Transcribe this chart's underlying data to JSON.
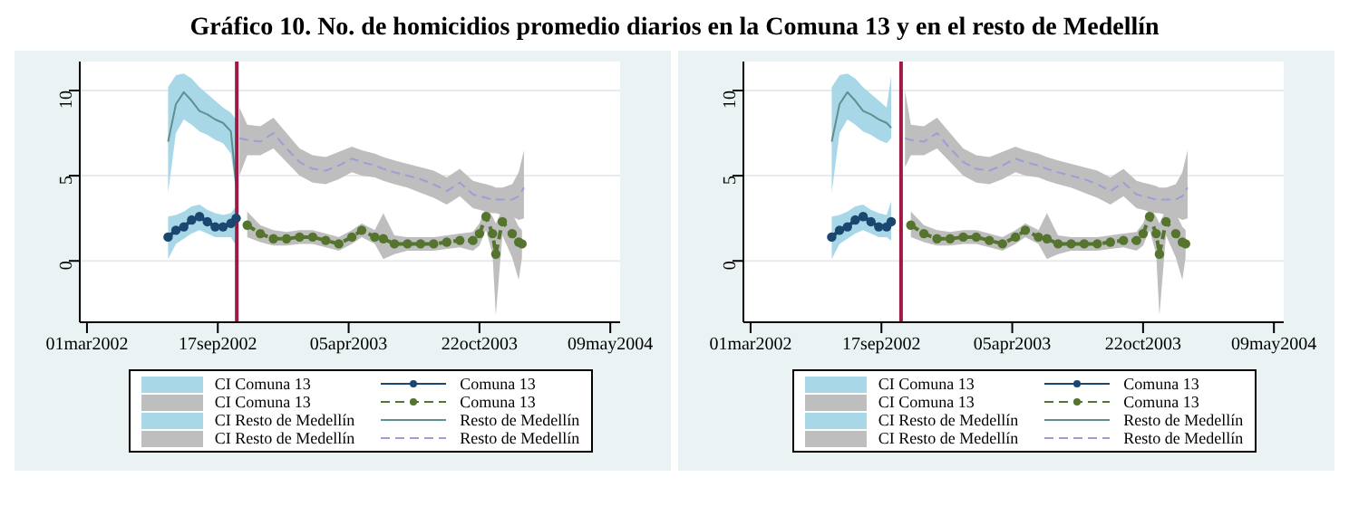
{
  "chart_data": [
    {
      "type": "line",
      "title": "Gráfico 10. No. de homicidios promedio diarios en la Comuna 13 y en el resto de Medellín",
      "xlim": [
        "2002-02-18",
        "2004-05-24"
      ],
      "xticks": [
        {
          "value": "2002-03-01",
          "label": "01mar2002"
        },
        {
          "value": "2002-09-17",
          "label": "17sep2002"
        },
        {
          "value": "2003-04-05",
          "label": "05apr2003"
        },
        {
          "value": "2003-10-22",
          "label": "22oct2003"
        },
        {
          "value": "2004-05-09",
          "label": "09may2004"
        }
      ],
      "ylim": [
        -3.6,
        11.7
      ],
      "yticks": [
        0,
        5,
        10
      ],
      "grid": "y",
      "legend": "bottom",
      "ref_lines": [
        {
          "axis": "x",
          "value": "2002-10-16",
          "color": "#9b1b45"
        }
      ],
      "series": [
        {
          "type": "area",
          "name": "CI Comuna 13",
          "color": "#a8d8e8"
        },
        {
          "type": "area",
          "name": "CI Comuna 13",
          "color": "#bebebe"
        },
        {
          "type": "area",
          "name": "CI Resto de Medellín",
          "color": "#a8d8e8"
        },
        {
          "type": "area",
          "name": "CI Resto de Medellín",
          "color": "#bebebe"
        },
        {
          "type": "line",
          "name": "Comuna 13",
          "color": "#1a476f",
          "marker": "circle",
          "line_style": "solid",
          "x": [
            "2002-07-03",
            "2002-07-15",
            "2002-07-27",
            "2002-08-08",
            "2002-08-20",
            "2002-09-01",
            "2002-09-13",
            "2002-09-25",
            "2002-10-07",
            "2002-10-15"
          ],
          "values": [
            1.4,
            1.8,
            2.0,
            2.4,
            2.6,
            2.3,
            2.0,
            2.0,
            2.2,
            2.5
          ],
          "lower": [
            0.1,
            1.0,
            1.3,
            1.6,
            1.8,
            1.6,
            1.4,
            1.4,
            1.4,
            0.9
          ],
          "upper": [
            2.6,
            2.7,
            2.9,
            3.2,
            3.3,
            3.0,
            2.8,
            2.7,
            2.8,
            3.2
          ]
        },
        {
          "type": "line",
          "name": "Comuna 13",
          "color": "#55752f",
          "marker": "circle",
          "line_style": "dashed",
          "x": [
            "2002-11-01",
            "2002-11-21",
            "2002-12-11",
            "2002-12-31",
            "2003-01-20",
            "2003-02-09",
            "2003-03-01",
            "2003-03-21",
            "2003-04-10",
            "2003-04-25",
            "2003-05-15",
            "2003-05-28",
            "2003-06-14",
            "2003-07-04",
            "2003-07-24",
            "2003-08-13",
            "2003-09-02",
            "2003-09-22",
            "2003-10-12",
            "2003-10-22",
            "2003-11-01",
            "2003-11-11",
            "2003-11-16",
            "2003-11-26",
            "2003-12-11",
            "2003-12-21",
            "2003-12-26"
          ],
          "values": [
            2.1,
            1.6,
            1.3,
            1.3,
            1.4,
            1.4,
            1.2,
            1.0,
            1.4,
            1.8,
            1.4,
            1.3,
            1.0,
            1.0,
            1.0,
            1.0,
            1.1,
            1.2,
            1.2,
            1.6,
            2.6,
            1.6,
            0.4,
            2.3,
            1.6,
            1.1,
            1.0
          ],
          "lower": [
            1.4,
            1.1,
            0.9,
            0.9,
            1.0,
            1.0,
            0.8,
            0.6,
            1.0,
            1.4,
            1.0,
            0.1,
            0.4,
            0.6,
            0.6,
            0.6,
            0.7,
            0.8,
            0.6,
            0.9,
            1.8,
            0.4,
            -3.2,
            1.5,
            0.2,
            -1.1,
            0.2
          ],
          "upper": [
            2.9,
            2.1,
            1.8,
            1.7,
            1.8,
            1.8,
            1.6,
            1.4,
            1.8,
            2.2,
            1.8,
            2.8,
            1.5,
            1.4,
            1.4,
            1.4,
            1.5,
            1.6,
            1.7,
            2.2,
            3.2,
            2.6,
            2.2,
            3.0,
            2.8,
            2.0,
            1.8
          ]
        },
        {
          "type": "line",
          "name": "Resto de Medellín",
          "color": "#5f8f8f",
          "line_style": "solid",
          "x": [
            "2002-07-03",
            "2002-07-15",
            "2002-07-27",
            "2002-08-08",
            "2002-08-20",
            "2002-09-01",
            "2002-09-13",
            "2002-09-25",
            "2002-10-07",
            "2002-10-15"
          ],
          "values": [
            7.0,
            9.2,
            9.9,
            9.4,
            8.8,
            8.6,
            8.3,
            8.1,
            7.6,
            4.5
          ],
          "lower": [
            4.0,
            7.5,
            8.3,
            8.0,
            7.6,
            7.4,
            7.1,
            6.9,
            6.3,
            4.0
          ],
          "upper": [
            10.2,
            10.9,
            11.0,
            10.7,
            10.2,
            9.8,
            9.4,
            9.0,
            8.7,
            8.3
          ]
        },
        {
          "type": "line",
          "name": "Resto de Medellín",
          "color": "#9a9fd6",
          "line_style": "dashed",
          "x": [
            "2002-10-20",
            "2002-11-01",
            "2002-11-21",
            "2002-12-11",
            "2002-12-31",
            "2003-01-20",
            "2003-02-09",
            "2003-03-01",
            "2003-03-21",
            "2003-04-10",
            "2003-04-25",
            "2003-05-15",
            "2003-05-28",
            "2003-06-14",
            "2003-07-04",
            "2003-07-24",
            "2003-08-13",
            "2003-09-02",
            "2003-09-22",
            "2003-10-12",
            "2003-10-22",
            "2003-11-01",
            "2003-11-11",
            "2003-11-16",
            "2003-11-26",
            "2003-12-11",
            "2003-12-21",
            "2003-12-29"
          ],
          "values": [
            7.2,
            7.1,
            7.0,
            7.5,
            6.6,
            5.8,
            5.4,
            5.3,
            5.6,
            6.0,
            5.8,
            5.6,
            5.4,
            5.2,
            5.0,
            4.8,
            4.5,
            4.1,
            4.6,
            3.9,
            3.8,
            3.7,
            3.6,
            3.6,
            3.6,
            3.6,
            3.8,
            4.3
          ],
          "lower": [
            5.0,
            6.2,
            6.2,
            6.6,
            5.8,
            5.0,
            4.6,
            4.5,
            4.8,
            5.2,
            5.0,
            4.9,
            4.7,
            4.5,
            4.3,
            4.0,
            3.7,
            3.3,
            3.8,
            3.1,
            3.0,
            2.9,
            2.8,
            2.8,
            2.7,
            2.6,
            2.4,
            2.5
          ],
          "upper": [
            9.0,
            8.0,
            7.9,
            8.4,
            7.5,
            6.6,
            6.2,
            6.1,
            6.4,
            6.7,
            6.5,
            6.3,
            6.1,
            5.9,
            5.7,
            5.5,
            5.3,
            4.9,
            5.4,
            4.7,
            4.6,
            4.5,
            4.4,
            4.3,
            4.3,
            4.5,
            5.2,
            6.5
          ]
        }
      ]
    },
    {
      "type": "line",
      "xlim": [
        "2002-02-18",
        "2004-05-24"
      ],
      "xticks": [
        {
          "value": "2002-03-01",
          "label": "01mar2002"
        },
        {
          "value": "2002-09-17",
          "label": "17sep2002"
        },
        {
          "value": "2003-04-05",
          "label": "05apr2003"
        },
        {
          "value": "2003-10-22",
          "label": "22oct2003"
        },
        {
          "value": "2004-05-09",
          "label": "09may2004"
        }
      ],
      "ylim": [
        -3.6,
        11.7
      ],
      "yticks": [
        0,
        5,
        10
      ],
      "grid": "y",
      "legend": "bottom",
      "ref_lines": [
        {
          "axis": "x",
          "value": "2002-10-17",
          "color": "#9b1b45"
        }
      ],
      "series": [
        {
          "type": "area",
          "name": "CI Comuna 13",
          "color": "#a8d8e8"
        },
        {
          "type": "area",
          "name": "CI Comuna 13",
          "color": "#bebebe"
        },
        {
          "type": "area",
          "name": "CI Resto de Medellín",
          "color": "#a8d8e8"
        },
        {
          "type": "area",
          "name": "CI Resto de Medellín",
          "color": "#bebebe"
        },
        {
          "type": "line",
          "name": "Comuna 13",
          "color": "#1a476f",
          "marker": "circle",
          "line_style": "solid",
          "x": [
            "2002-07-03",
            "2002-07-15",
            "2002-07-27",
            "2002-08-08",
            "2002-08-20",
            "2002-09-01",
            "2002-09-13",
            "2002-09-25",
            "2002-10-02"
          ],
          "values": [
            1.4,
            1.8,
            2.0,
            2.4,
            2.6,
            2.3,
            2.0,
            2.0,
            2.3
          ],
          "lower": [
            0.1,
            1.0,
            1.3,
            1.6,
            1.8,
            1.6,
            1.4,
            1.4,
            1.2
          ],
          "upper": [
            2.6,
            2.7,
            2.9,
            3.2,
            3.3,
            3.0,
            2.8,
            2.7,
            3.5
          ]
        },
        {
          "type": "line",
          "name": "Comuna 13",
          "color": "#55752f",
          "marker": "circle",
          "line_style": "dashed",
          "x": [
            "2002-11-01",
            "2002-11-21",
            "2002-12-11",
            "2002-12-31",
            "2003-01-20",
            "2003-02-09",
            "2003-03-01",
            "2003-03-21",
            "2003-04-10",
            "2003-04-25",
            "2003-05-15",
            "2003-05-28",
            "2003-06-14",
            "2003-07-04",
            "2003-07-24",
            "2003-08-13",
            "2003-09-02",
            "2003-09-22",
            "2003-10-12",
            "2003-10-22",
            "2003-11-01",
            "2003-11-11",
            "2003-11-16",
            "2003-11-26",
            "2003-12-11",
            "2003-12-21",
            "2003-12-26"
          ],
          "values": [
            2.1,
            1.6,
            1.3,
            1.3,
            1.4,
            1.4,
            1.2,
            1.0,
            1.4,
            1.8,
            1.4,
            1.3,
            1.0,
            1.0,
            1.0,
            1.0,
            1.1,
            1.2,
            1.2,
            1.6,
            2.6,
            1.6,
            0.4,
            2.3,
            1.6,
            1.1,
            1.0
          ],
          "lower": [
            1.4,
            1.1,
            0.9,
            0.9,
            1.0,
            1.0,
            0.8,
            0.6,
            1.0,
            1.4,
            1.0,
            0.1,
            0.4,
            0.6,
            0.6,
            0.6,
            0.7,
            0.8,
            0.6,
            0.9,
            1.8,
            0.4,
            -3.2,
            1.5,
            0.2,
            -1.1,
            0.2
          ],
          "upper": [
            2.9,
            2.1,
            1.8,
            1.7,
            1.8,
            1.8,
            1.6,
            1.4,
            1.8,
            2.2,
            1.8,
            2.8,
            1.5,
            1.4,
            1.4,
            1.4,
            1.5,
            1.6,
            1.7,
            2.2,
            3.2,
            2.6,
            2.2,
            3.0,
            2.8,
            2.0,
            1.8
          ]
        },
        {
          "type": "line",
          "name": "Resto de Medellín",
          "color": "#5f8f8f",
          "line_style": "solid",
          "x": [
            "2002-07-03",
            "2002-07-15",
            "2002-07-27",
            "2002-08-08",
            "2002-08-20",
            "2002-09-01",
            "2002-09-13",
            "2002-09-25",
            "2002-10-02"
          ],
          "values": [
            7.0,
            9.2,
            9.9,
            9.4,
            8.8,
            8.6,
            8.3,
            8.1,
            7.8
          ],
          "lower": [
            4.0,
            7.5,
            8.3,
            8.0,
            7.6,
            7.4,
            7.1,
            6.9,
            7.2
          ],
          "upper": [
            10.2,
            10.9,
            11.0,
            10.7,
            10.2,
            9.8,
            9.4,
            9.0,
            10.9
          ]
        },
        {
          "type": "line",
          "name": "Resto de Medellín",
          "color": "#9a9fd6",
          "line_style": "dashed",
          "x": [
            "2002-10-23",
            "2002-11-01",
            "2002-11-21",
            "2002-12-11",
            "2002-12-31",
            "2003-01-20",
            "2003-02-09",
            "2003-03-01",
            "2003-03-21",
            "2003-04-10",
            "2003-04-25",
            "2003-05-15",
            "2003-05-28",
            "2003-06-14",
            "2003-07-04",
            "2003-07-24",
            "2003-08-13",
            "2003-09-02",
            "2003-09-22",
            "2003-10-12",
            "2003-10-22",
            "2003-11-01",
            "2003-11-11",
            "2003-11-16",
            "2003-11-26",
            "2003-12-11",
            "2003-12-21",
            "2003-12-29"
          ],
          "values": [
            7.2,
            7.1,
            7.0,
            7.5,
            6.6,
            5.8,
            5.4,
            5.3,
            5.6,
            6.0,
            5.8,
            5.6,
            5.4,
            5.2,
            5.0,
            4.8,
            4.5,
            4.1,
            4.6,
            3.9,
            3.8,
            3.7,
            3.6,
            3.6,
            3.6,
            3.6,
            3.8,
            4.3
          ],
          "lower": [
            5.5,
            6.2,
            6.2,
            6.6,
            5.8,
            5.0,
            4.6,
            4.5,
            4.8,
            5.2,
            5.0,
            4.9,
            4.7,
            4.5,
            4.3,
            4.0,
            3.7,
            3.3,
            3.8,
            3.1,
            3.0,
            2.9,
            2.8,
            2.8,
            2.7,
            2.6,
            2.4,
            2.5
          ],
          "upper": [
            10.0,
            8.0,
            7.9,
            8.4,
            7.5,
            6.6,
            6.2,
            6.1,
            6.4,
            6.7,
            6.5,
            6.3,
            6.1,
            5.9,
            5.7,
            5.5,
            5.3,
            4.9,
            5.4,
            4.7,
            4.6,
            4.5,
            4.4,
            4.3,
            4.3,
            4.5,
            5.2,
            6.5
          ]
        }
      ]
    }
  ]
}
